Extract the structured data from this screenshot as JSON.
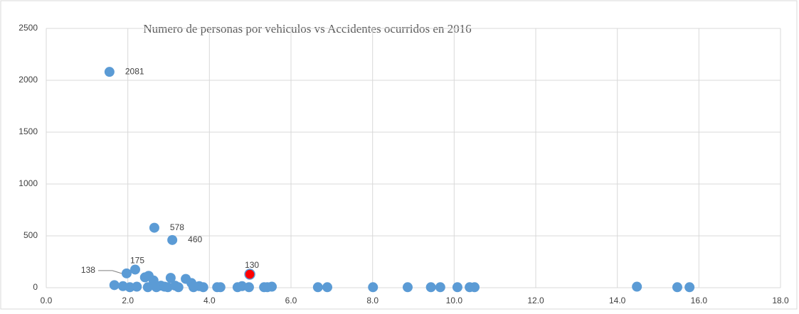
{
  "chart_data": {
    "type": "scatter",
    "title": "Numero de personas por vehiculos vs Accidentes ocurridos en 2016",
    "xlim": [
      0,
      18
    ],
    "ylim": [
      0,
      2500
    ],
    "xticks": [
      {
        "value": 0,
        "label": "0.0"
      },
      {
        "value": 2,
        "label": "2.0"
      },
      {
        "value": 4,
        "label": "4.0"
      },
      {
        "value": 6,
        "label": "6.0"
      },
      {
        "value": 8,
        "label": "8.0"
      },
      {
        "value": 10,
        "label": "10.0"
      },
      {
        "value": 12,
        "label": "12.0"
      },
      {
        "value": 14,
        "label": "14.0"
      },
      {
        "value": 16,
        "label": "16.0"
      },
      {
        "value": 18,
        "label": "18.0"
      }
    ],
    "yticks": [
      0,
      500,
      1000,
      1500,
      2000,
      2500
    ],
    "grid": true,
    "series": [
      {
        "color": "#5b9bd5",
        "x": [
          1.55,
          2.65,
          3.09,
          2.18,
          1.97,
          1.67,
          1.88,
          2.05,
          2.22,
          2.42,
          2.51,
          2.49,
          2.63,
          2.7,
          2.81,
          2.9,
          2.98,
          3.05,
          3.16,
          3.24,
          3.42,
          3.56,
          3.61,
          3.75,
          3.85,
          4.19,
          4.27,
          4.69,
          4.8,
          4.97,
          5.34,
          5.42,
          5.53,
          6.66,
          6.89,
          8.01,
          8.86,
          9.43,
          9.66,
          10.08,
          10.38,
          10.5,
          14.48,
          15.47,
          15.77
        ],
        "values": [
          2081,
          578,
          460,
          175,
          138,
          25,
          15,
          5,
          10,
          100,
          115,
          5,
          70,
          5,
          20,
          10,
          5,
          95,
          20,
          5,
          85,
          45,
          5,
          15,
          5,
          5,
          5,
          5,
          15,
          5,
          5,
          5,
          10,
          5,
          5,
          5,
          5,
          5,
          5,
          5,
          5,
          5,
          10,
          5,
          5
        ],
        "value_labels": [
          "2081",
          "578",
          "460",
          "175",
          "138",
          null,
          null,
          null,
          null,
          null,
          null,
          null,
          null,
          null,
          null,
          null,
          null,
          null,
          null,
          null,
          null,
          null,
          null,
          null,
          null,
          null,
          null,
          null,
          null,
          null,
          null,
          null,
          null,
          null,
          null,
          null,
          null,
          null,
          null,
          null,
          null,
          null,
          null,
          null,
          null
        ]
      },
      {
        "color": "#ff0000",
        "x": [
          4.99
        ],
        "values": [
          130
        ],
        "value_labels": [
          "130"
        ]
      }
    ]
  }
}
